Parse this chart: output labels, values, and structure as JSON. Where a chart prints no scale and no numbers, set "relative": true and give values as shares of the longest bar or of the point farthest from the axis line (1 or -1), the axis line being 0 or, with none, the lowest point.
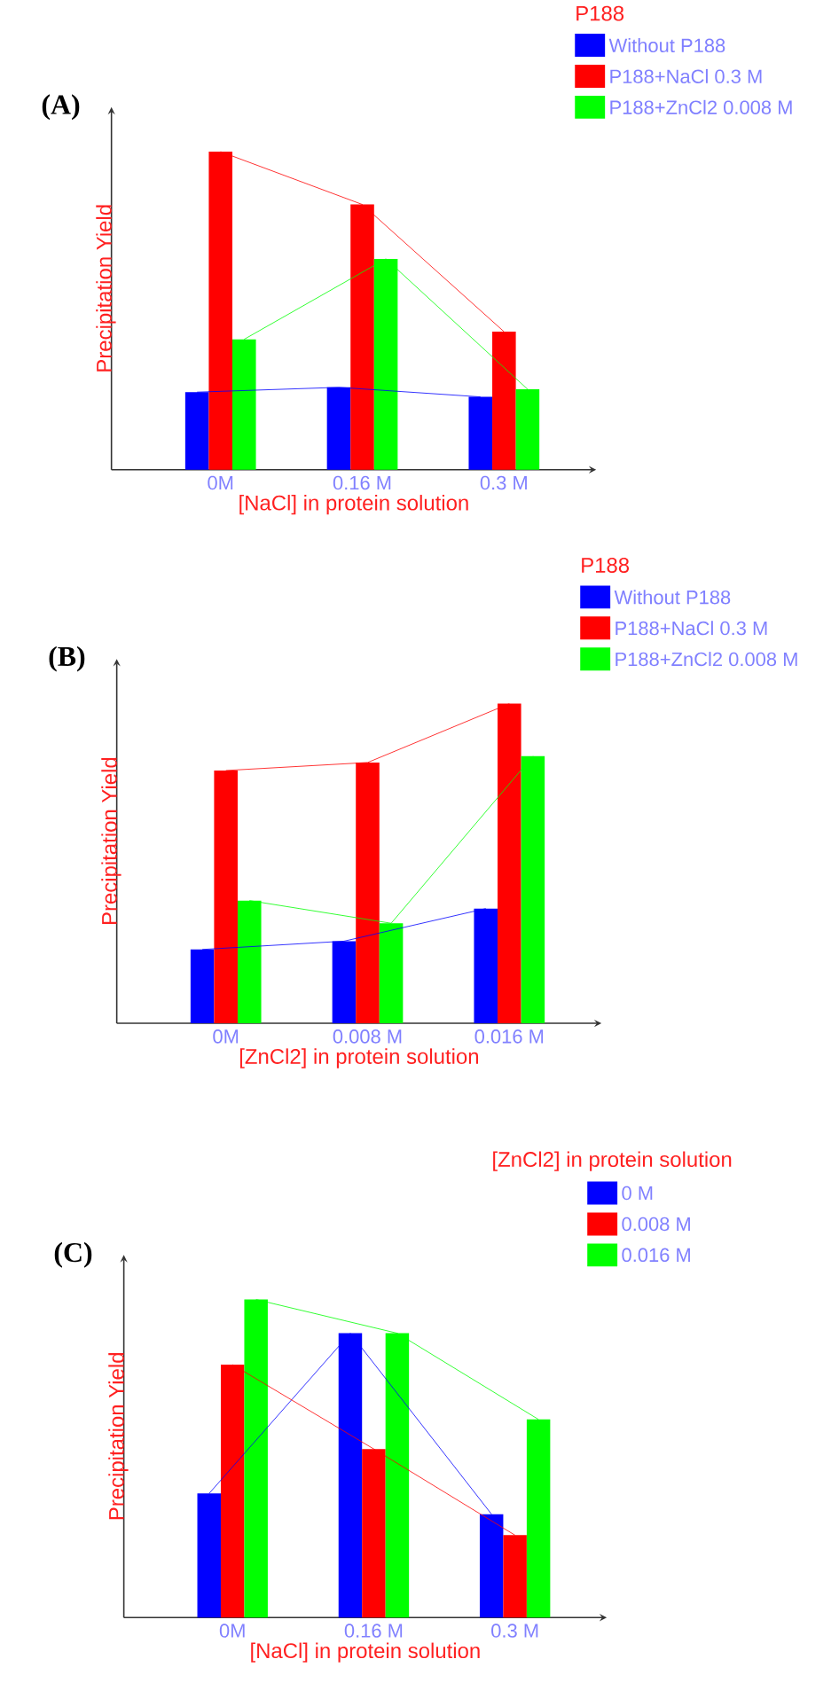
{
  "chart_data": [
    {
      "type": "bar",
      "title": "(A)",
      "xlabel": "[NaCl] in protein solution",
      "ylabel": "Precipitation Yield",
      "legend_title": "P188",
      "legend": "top right",
      "relative": true,
      "categories": [
        "0M",
        "0.16 M",
        "0.3 M"
      ],
      "series": [
        {
          "name": "Without P188",
          "color": "#0000ff",
          "values": [
            0.244,
            0.259,
            0.229
          ]
        },
        {
          "name": "P188+NaCl 0.3 M",
          "color": "#ff0000",
          "values": [
            1,
            0.834,
            0.434
          ]
        },
        {
          "name": "P188+ZnCl2 0.008 M",
          "color": "#00ff00",
          "values": [
            0.41,
            0.663,
            0.253
          ]
        }
      ]
    },
    {
      "type": "bar",
      "title": "(B)",
      "xlabel": "[ZnCl2] in protein solution",
      "ylabel": "Precipitation Yield",
      "legend_title": "P188",
      "legend": "top right",
      "relative": true,
      "categories": [
        "0M",
        "0.008 M",
        "0.016 M"
      ],
      "series": [
        {
          "name": "Without P188",
          "color": "#0000ff",
          "values": [
            0.231,
            0.257,
            0.359
          ]
        },
        {
          "name": "P188+NaCl 0.3 M",
          "color": "#ff0000",
          "values": [
            0.791,
            0.816,
            1
          ]
        },
        {
          "name": "P188+ZnCl2 0.008 M",
          "color": "#00ff00",
          "values": [
            0.384,
            0.313,
            0.836
          ]
        }
      ]
    },
    {
      "type": "bar",
      "title": "(C)",
      "xlabel": "[NaCl] in protein solution",
      "ylabel": "Precipitation Yield",
      "legend_title": "[ZnCl2] in protein solution",
      "legend": "top right",
      "relative": true,
      "categories": [
        "0M",
        "0.16 M",
        "0.3 M"
      ],
      "series": [
        {
          "name": "0 M",
          "color": "#0000ff",
          "values": [
            0.39,
            0.894,
            0.325
          ]
        },
        {
          "name": "0.008 M",
          "color": "#ff0000",
          "values": [
            0.795,
            0.53,
            0.259
          ]
        },
        {
          "name": "0.016 M",
          "color": "#00ff00",
          "values": [
            1,
            0.894,
            0.623
          ]
        }
      ]
    }
  ]
}
